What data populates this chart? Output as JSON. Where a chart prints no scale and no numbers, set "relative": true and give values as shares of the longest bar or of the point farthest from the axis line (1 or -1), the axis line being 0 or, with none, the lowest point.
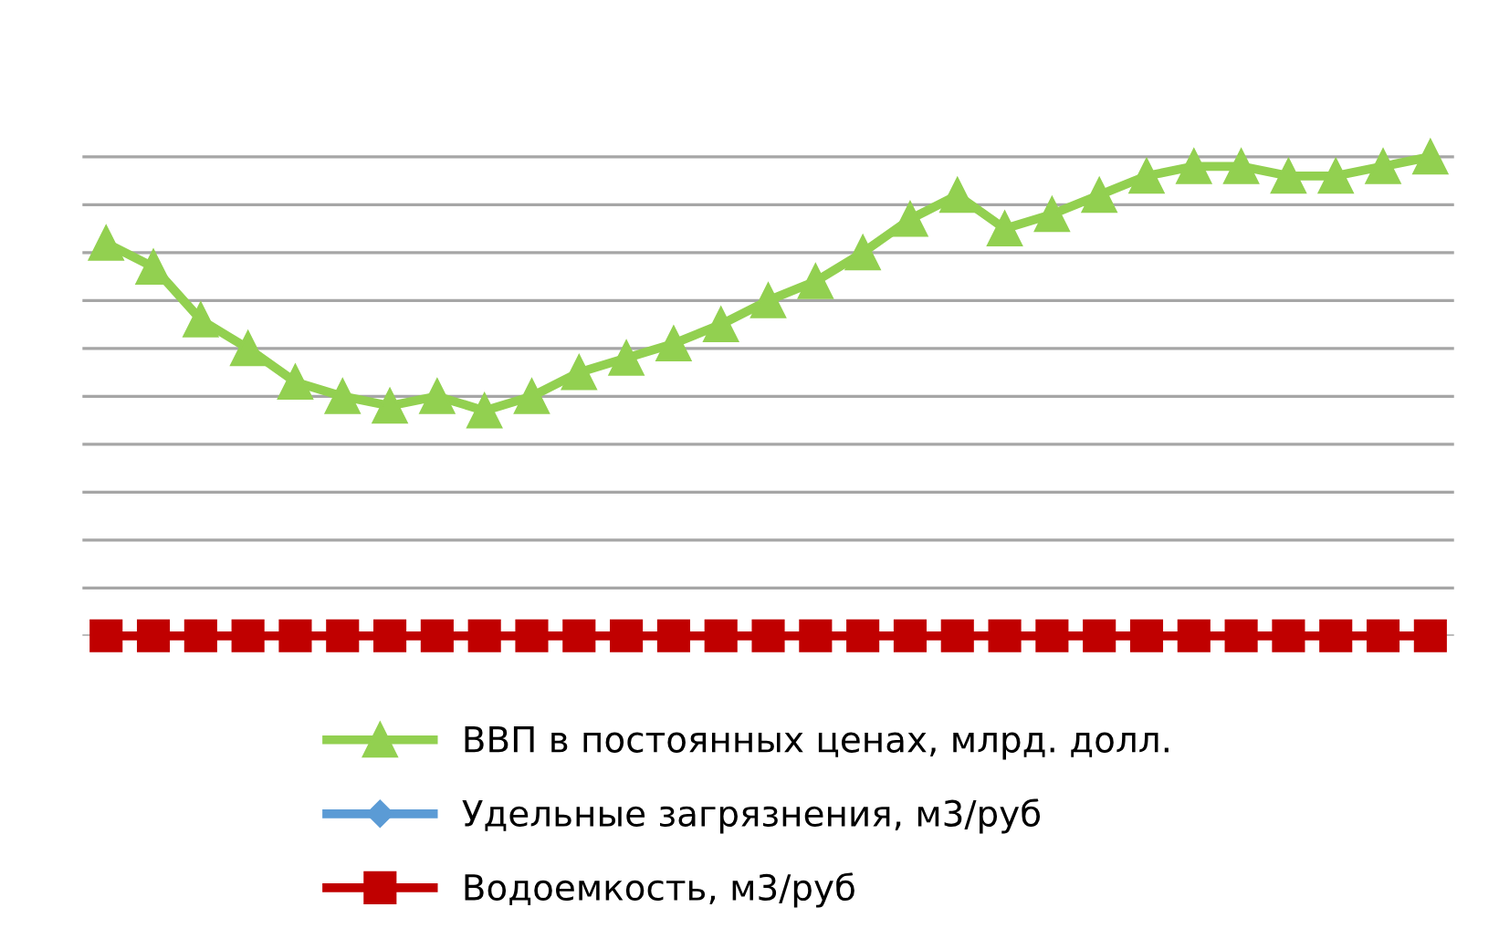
{
  "chart_data": {
    "type": "line",
    "relative": true,
    "grid": "y",
    "legend": "bottom",
    "categories": [
      null,
      null,
      null,
      null,
      null,
      null,
      null,
      null,
      null,
      null,
      null,
      null,
      null,
      null,
      null,
      null,
      null,
      null,
      null,
      null,
      null,
      null,
      null,
      null,
      null,
      null,
      null,
      null,
      null
    ],
    "series": [
      {
        "name": "ВВП в постоянных ценах, млрд. долл.",
        "color": "#92d050",
        "marker": "triangle",
        "values": [
          0.82,
          0.77,
          0.66,
          0.6,
          0.53,
          0.5,
          0.48,
          0.5,
          0.47,
          0.5,
          0.55,
          0.58,
          0.61,
          0.65,
          0.7,
          0.74,
          0.8,
          0.87,
          0.92,
          0.85,
          0.88,
          0.92,
          0.96,
          0.98,
          0.98,
          0.96,
          0.96,
          0.98,
          1.0
        ]
      },
      {
        "name": "Удельные загрязнения, м3/руб",
        "color": "#5b9bd5",
        "marker": "diamond",
        "values": [
          null,
          null,
          null,
          null,
          null,
          null,
          null,
          null,
          null,
          null,
          null,
          null,
          null,
          null,
          null,
          null,
          null,
          null,
          null,
          null,
          null,
          null,
          null,
          null,
          null,
          null,
          null,
          null,
          null
        ]
      },
      {
        "name": "Водоемкость, м3/руб",
        "color": "#c00000",
        "marker": "square",
        "values": [
          0,
          0,
          0,
          0,
          0,
          0,
          0,
          0,
          0,
          0,
          0,
          0,
          0,
          0,
          0,
          0,
          0,
          0,
          0,
          0,
          0,
          0,
          0,
          0,
          0,
          0,
          0,
          0,
          0
        ]
      }
    ]
  }
}
